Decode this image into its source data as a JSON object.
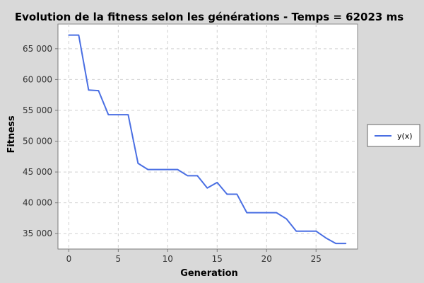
{
  "chart_data": {
    "type": "line",
    "title": "Evolution de la fitness selon les générations - Temps = 62023 ms",
    "xlabel": "Generation",
    "ylabel": "Fitness",
    "xlim": [
      -1.1,
      29.2
    ],
    "ylim": [
      32500,
      69000
    ],
    "x_ticks": [
      0,
      5,
      10,
      15,
      20,
      25
    ],
    "y_ticks": [
      35000,
      40000,
      45000,
      50000,
      55000,
      60000,
      65000
    ],
    "x_tick_labels": [
      "0",
      "5",
      "10",
      "15",
      "20",
      "25"
    ],
    "y_tick_labels": [
      "35 000",
      "40 000",
      "45 000",
      "50 000",
      "55 000",
      "60 000",
      "65 000"
    ],
    "grid": true,
    "legend_position": "right",
    "series": [
      {
        "name": "y(x)",
        "color": "#4a6fe3",
        "x": [
          0,
          1,
          2,
          3,
          4,
          5,
          6,
          7,
          8,
          9,
          10,
          11,
          12,
          13,
          14,
          15,
          16,
          17,
          18,
          19,
          20,
          21,
          22,
          23,
          24,
          25,
          26,
          27,
          28
        ],
        "y": [
          67200,
          67200,
          58300,
          58200,
          54300,
          54300,
          54300,
          46400,
          45400,
          45400,
          45400,
          45400,
          44400,
          44400,
          42400,
          43300,
          41400,
          41400,
          38400,
          38400,
          38400,
          38400,
          37400,
          35400,
          35400,
          35400,
          34300,
          33400,
          33400
        ]
      }
    ]
  }
}
